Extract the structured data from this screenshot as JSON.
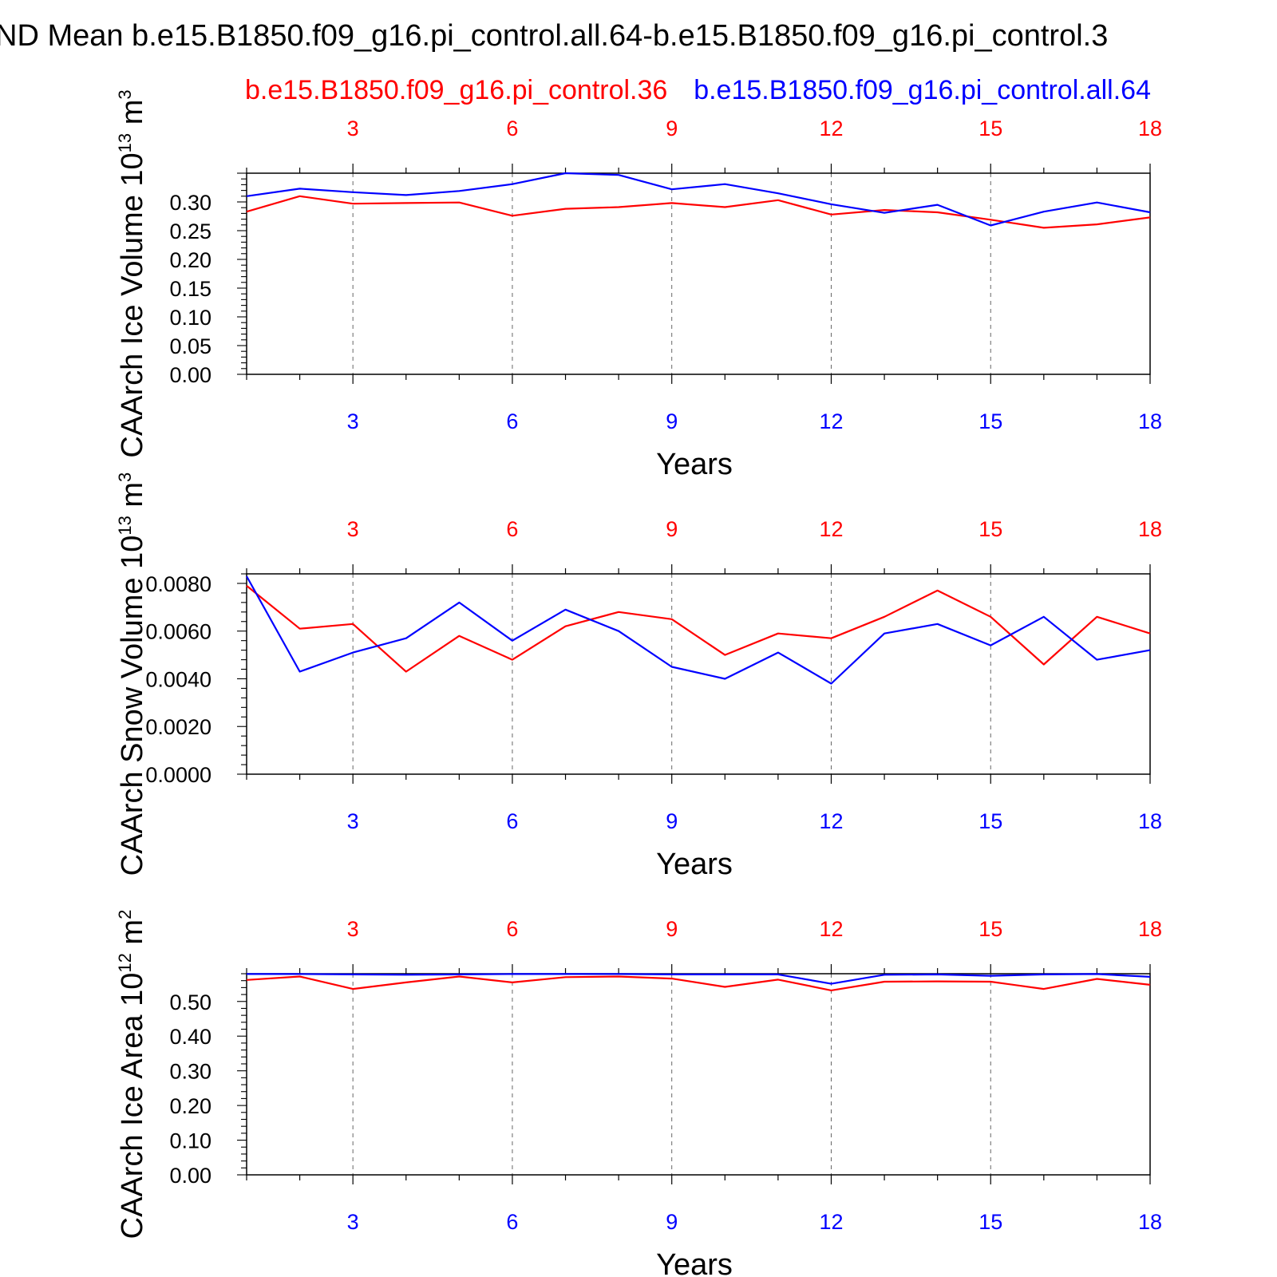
{
  "title": "ND Mean b.e15.B1850.f09_g16.pi_control.all.64-b.e15.B1850.f09_g16.pi_control.3",
  "legend": {
    "red_label": "b.e15.B1850.f09_g16.pi_control.36",
    "blue_label": "b.e15.B1850.f09_g16.pi_control.all.64"
  },
  "colors": {
    "series_red": "#ff0000",
    "series_blue": "#0000ff",
    "axis": "#000000",
    "grid": "#666666"
  },
  "chart_data": [
    {
      "type": "line",
      "ylabel": "CAArch Ice Volume 10",
      "ylabel_exp": "13",
      "ylabel_unit": "m",
      "ylabel_unit_exp": "3",
      "xlabel": "Years",
      "xlim": [
        1,
        18
      ],
      "ylim": [
        0,
        0.35
      ],
      "xticks": [
        3,
        6,
        9,
        12,
        15,
        18
      ],
      "yticks": [
        "0.00",
        "0.05",
        "0.10",
        "0.15",
        "0.20",
        "0.25",
        "0.30"
      ],
      "grid": "vertical dashed at labeled x ticks",
      "x": [
        1,
        2,
        3,
        4,
        5,
        6,
        7,
        8,
        9,
        10,
        11,
        12,
        13,
        14,
        15,
        16,
        17,
        18
      ],
      "series": [
        {
          "color": "red",
          "values": [
            0.283,
            0.31,
            0.297,
            0.298,
            0.299,
            0.276,
            0.288,
            0.291,
            0.298,
            0.291,
            0.303,
            0.278,
            0.286,
            0.282,
            0.269,
            0.255,
            0.261,
            0.273
          ]
        },
        {
          "color": "blue",
          "values": [
            0.31,
            0.323,
            0.317,
            0.312,
            0.319,
            0.331,
            0.35,
            0.347,
            0.322,
            0.331,
            0.315,
            0.296,
            0.281,
            0.295,
            0.259,
            0.283,
            0.299,
            0.282
          ]
        }
      ]
    },
    {
      "type": "line",
      "ylabel": "CAArch Snow Volume 10",
      "ylabel_exp": "13",
      "ylabel_unit": "m",
      "ylabel_unit_exp": "3",
      "xlabel": "Years",
      "xlim": [
        1,
        18
      ],
      "ylim": [
        0,
        0.0084
      ],
      "xticks": [
        3,
        6,
        9,
        12,
        15,
        18
      ],
      "yticks": [
        "0.0000",
        "0.0020",
        "0.0040",
        "0.0060",
        "0.0080"
      ],
      "grid": "vertical dashed at labeled x ticks",
      "x": [
        1,
        2,
        3,
        4,
        5,
        6,
        7,
        8,
        9,
        10,
        11,
        12,
        13,
        14,
        15,
        16,
        17,
        18
      ],
      "series": [
        {
          "color": "red",
          "values": [
            0.0079,
            0.0061,
            0.0063,
            0.0043,
            0.0058,
            0.0048,
            0.0062,
            0.0068,
            0.0065,
            0.005,
            0.0059,
            0.0057,
            0.0066,
            0.0077,
            0.0066,
            0.0046,
            0.0066,
            0.0059
          ]
        },
        {
          "color": "blue",
          "values": [
            0.0083,
            0.0043,
            0.0051,
            0.0057,
            0.0072,
            0.0056,
            0.0069,
            0.006,
            0.0045,
            0.004,
            0.0051,
            0.0038,
            0.0059,
            0.0063,
            0.0054,
            0.0066,
            0.0048,
            0.0052
          ]
        }
      ]
    },
    {
      "type": "line",
      "ylabel": "CAArch Ice Area 10",
      "ylabel_exp": "12",
      "ylabel_unit": "m",
      "ylabel_unit_exp": "2",
      "xlabel": "Years",
      "xlim": [
        1,
        18
      ],
      "ylim": [
        0,
        0.58
      ],
      "xticks": [
        3,
        6,
        9,
        12,
        15,
        18
      ],
      "yticks": [
        "0.00",
        "0.10",
        "0.20",
        "0.30",
        "0.40",
        "0.50"
      ],
      "grid": "vertical dashed at labeled x ticks",
      "x": [
        1,
        2,
        3,
        4,
        5,
        6,
        7,
        8,
        9,
        10,
        11,
        12,
        13,
        14,
        15,
        16,
        17,
        18
      ],
      "series": [
        {
          "color": "red",
          "values": [
            0.562,
            0.572,
            0.536,
            0.555,
            0.572,
            0.555,
            0.57,
            0.572,
            0.566,
            0.542,
            0.563,
            0.532,
            0.557,
            0.558,
            0.557,
            0.536,
            0.565,
            0.548
          ]
        },
        {
          "color": "blue",
          "values": [
            0.579,
            0.579,
            0.578,
            0.577,
            0.578,
            0.579,
            0.579,
            0.579,
            0.578,
            0.578,
            0.578,
            0.551,
            0.577,
            0.578,
            0.574,
            0.578,
            0.579,
            0.571
          ]
        }
      ]
    }
  ]
}
